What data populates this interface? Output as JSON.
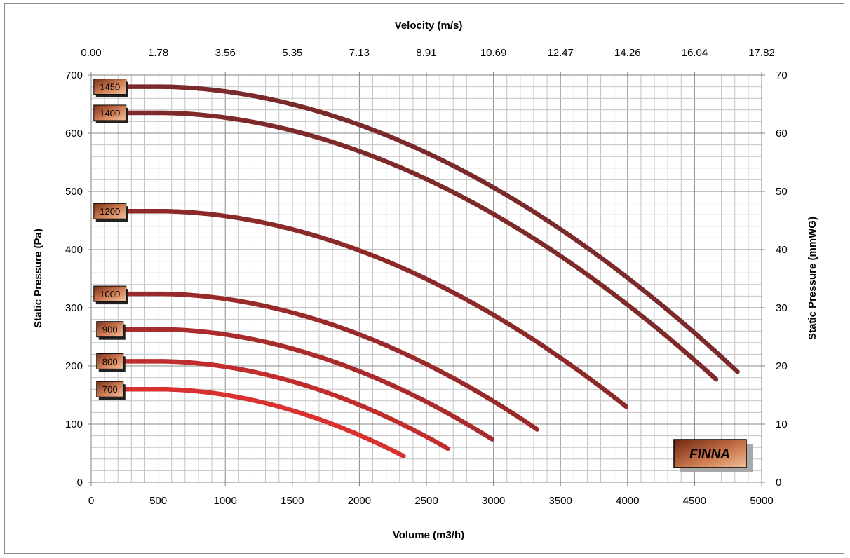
{
  "chart_data": {
    "type": "line",
    "title": "",
    "xlabel": "Volume (m3/h)",
    "ylabel": "Static Pressure (Pa)",
    "x2label": "Velocity (m/s)",
    "y2label": "Static Pressure (mmWG)",
    "xlim": [
      0,
      5000
    ],
    "ylim": [
      0,
      700
    ],
    "y2lim": [
      0,
      70
    ],
    "x_ticks": [
      "0",
      "500",
      "1000",
      "1500",
      "2000",
      "2500",
      "3000",
      "3500",
      "4000",
      "4500",
      "5000"
    ],
    "y_ticks": [
      "0",
      "100",
      "200",
      "300",
      "400",
      "500",
      "600",
      "700"
    ],
    "x2_ticks": [
      "0.00",
      "1.78",
      "3.56",
      "5.35",
      "7.13",
      "8.91",
      "10.69",
      "12.47",
      "14.26",
      "16.04",
      "17.82"
    ],
    "y2_ticks": [
      "0",
      "10",
      "20",
      "30",
      "40",
      "50",
      "60",
      "70"
    ],
    "grid": true,
    "series": [
      {
        "name": "1450",
        "color": "#7a2a2a",
        "shutoff": 680,
        "x_end": 4820,
        "y_end": 190
      },
      {
        "name": "1400",
        "color": "#7f2a2a",
        "shutoff": 635,
        "x_end": 4660,
        "y_end": 177
      },
      {
        "name": "1200",
        "color": "#8c2a2a",
        "shutoff": 466,
        "x_end": 3990,
        "y_end": 130
      },
      {
        "name": "1000",
        "color": "#9a2a2a",
        "shutoff": 324,
        "x_end": 3325,
        "y_end": 91
      },
      {
        "name": "900",
        "color": "#a92b2b",
        "shutoff": 263,
        "x_end": 2990,
        "y_end": 74
      },
      {
        "name": "800",
        "color": "#bf2d2d",
        "shutoff": 208,
        "x_end": 2660,
        "y_end": 58
      },
      {
        "name": "700",
        "color": "#d93030",
        "shutoff": 160,
        "x_end": 2330,
        "y_end": 45
      }
    ],
    "brand": "FINNA"
  }
}
